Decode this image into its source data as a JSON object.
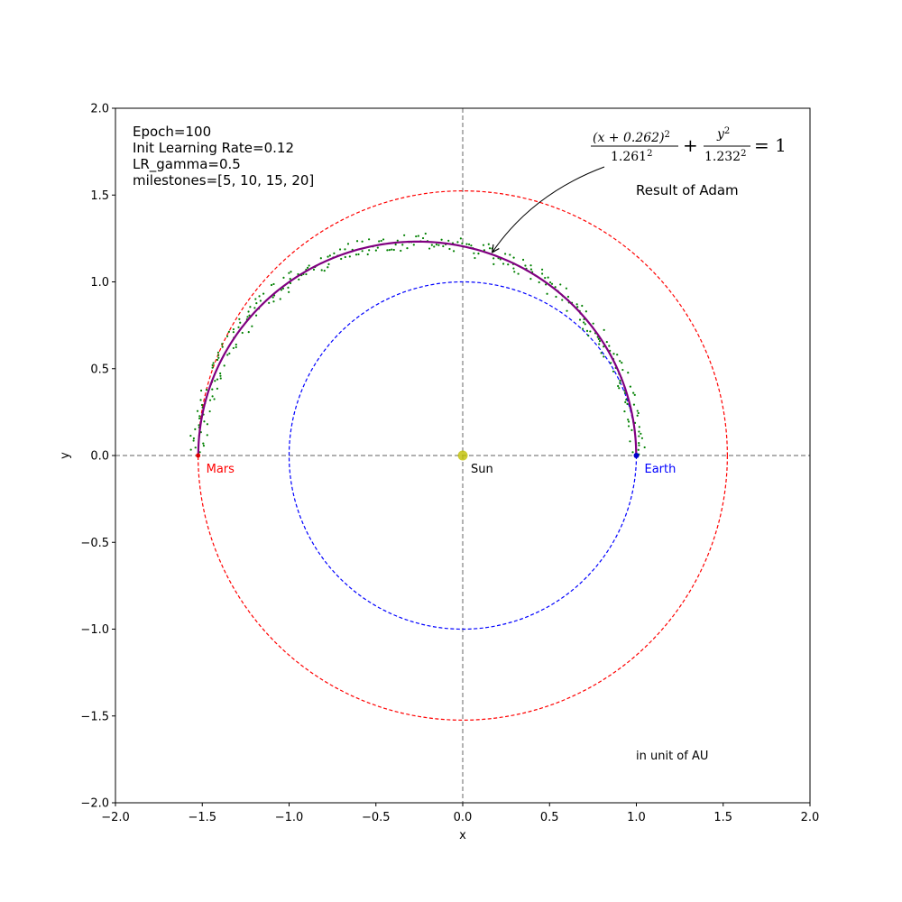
{
  "chart_data": {
    "type": "scatter",
    "xlabel": "x",
    "ylabel": "y",
    "xlim": [
      -2.0,
      2.0
    ],
    "ylim": [
      -2.0,
      2.0
    ],
    "xticks": [
      -2.0,
      -1.5,
      -1.0,
      -0.5,
      0.0,
      0.5,
      1.0,
      1.5,
      2.0
    ],
    "yticks": [
      -2.0,
      -1.5,
      -1.0,
      -0.5,
      0.0,
      0.5,
      1.0,
      1.5,
      2.0
    ],
    "xtick_labels": [
      "−2.0",
      "−1.5",
      "−1.0",
      "−0.5",
      "0.0",
      "0.5",
      "1.0",
      "1.5",
      "2.0"
    ],
    "ytick_labels": [
      "−2.0",
      "−1.5",
      "−1.0",
      "−0.5",
      "0.0",
      "0.5",
      "1.0",
      "1.5",
      "2.0"
    ],
    "grid": false,
    "info_lines": [
      "Epoch=100",
      "Init Learning Rate=0.12",
      "LR_gamma=0.5",
      "milestones=[5, 10, 15, 20]"
    ],
    "orbits": [
      {
        "name": "Earth orbit",
        "radius": 1.0,
        "color": "#0000ff",
        "style": "dashed"
      },
      {
        "name": "Mars orbit",
        "radius": 1.524,
        "color": "#ff0000",
        "style": "dashed"
      }
    ],
    "points": [
      {
        "label": "Sun",
        "x": 0.0,
        "y": 0.0,
        "color": "#bfbf00",
        "text_color": "#000000"
      },
      {
        "label": "Earth",
        "x": 1.0,
        "y": 0.0,
        "color": "#0000cc",
        "text_color": "#0000ff"
      },
      {
        "label": "Mars",
        "x": -1.524,
        "y": 0.0,
        "color": "#dd0000",
        "text_color": "#ff0000"
      }
    ],
    "fitted_ellipse": {
      "name": "Result of Adam",
      "h": -0.262,
      "a": 1.261,
      "b": 1.232,
      "color": "#800080"
    },
    "observations": {
      "color": "#008000",
      "count": 300,
      "noise": 0.025
    },
    "equation": {
      "num1": "(x + 0.262)",
      "den1": "1.261",
      "num2": "y",
      "den2": "1.232",
      "sup": "2",
      "plus": "+",
      "rhs": "= 1"
    },
    "annotation": {
      "text": "Result of Adam",
      "arrow_target": {
        "x": 0.17,
        "y": 1.17
      }
    },
    "unit_note": "in unit of AU",
    "axis_lines": {
      "x0": 0.0,
      "y0": 0.0,
      "color": "#808080"
    }
  }
}
